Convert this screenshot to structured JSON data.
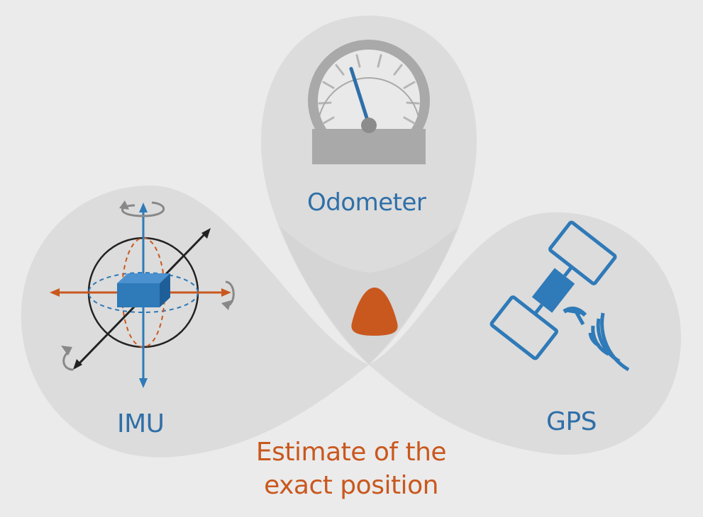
{
  "colors": {
    "background": "#ebebeb",
    "lobe_fill": "#dcdcdc",
    "overlap_fill": "#cfcfcf",
    "accent_blue": "#2f6fa8",
    "icon_blue": "#2f7ab8",
    "estimate_orange": "#c9581e",
    "gauge_gray": "#a0a0a0"
  },
  "sensors": {
    "odometer": {
      "label": "Odometer",
      "icon": "speedometer-icon"
    },
    "imu": {
      "label": "IMU",
      "icon": "imu-gyroscope-icon"
    },
    "gps": {
      "label": "GPS",
      "icon": "satellite-icon"
    }
  },
  "estimate": {
    "line1": "Estimate of the",
    "line2": "exact position",
    "icon": "position-marker-icon"
  }
}
